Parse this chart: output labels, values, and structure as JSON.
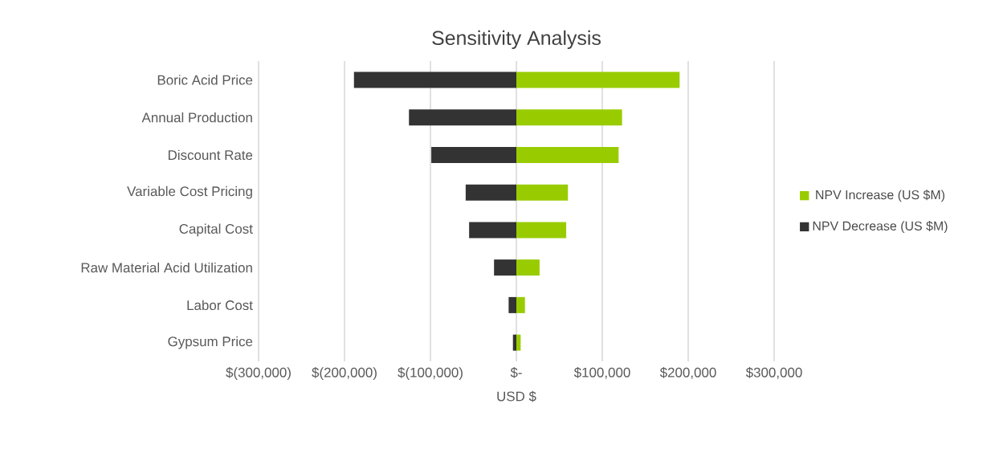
{
  "chart_data": {
    "type": "bar",
    "orientation": "horizontal",
    "stacked": true,
    "title": "Sensitivity Analysis",
    "xlabel": "USD $",
    "categories": [
      "Boric Acid Price",
      "Annual Production",
      "Discount Rate",
      "Variable Cost Pricing",
      "Capital Cost",
      "Raw Material Acid Utilization",
      "Labor Cost",
      "Gypsum Price"
    ],
    "series": [
      {
        "name": "NPV Increase (US $M)",
        "color": "#99cc00",
        "values": [
          190000,
          123000,
          119000,
          60000,
          58000,
          27000,
          10000,
          5000
        ]
      },
      {
        "name": "NPV Decrease (US $M)",
        "color": "#333333",
        "values": [
          -189000,
          -125000,
          -99000,
          -59000,
          -55000,
          -26000,
          -9000,
          -4000
        ]
      }
    ],
    "xlim": [
      -300000,
      300000
    ],
    "xticks": [
      {
        "value": -300000,
        "label": "$(300,000)"
      },
      {
        "value": -200000,
        "label": "$(200,000)"
      },
      {
        "value": -100000,
        "label": "$(100,000)"
      },
      {
        "value": 0,
        "label": "$-"
      },
      {
        "value": 100000,
        "label": "$100,000"
      },
      {
        "value": 200000,
        "label": "$200,000"
      },
      {
        "value": 300000,
        "label": "$300,000"
      }
    ],
    "grid": "x",
    "legend": "right"
  }
}
